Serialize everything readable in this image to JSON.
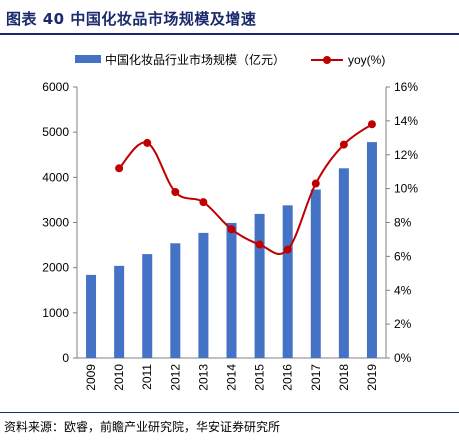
{
  "header": {
    "title": "图表 40  中国化妆品市场规模及增速"
  },
  "footer": {
    "source": "资料来源：欧睿，前瞻产业研究院，华安证券研究所"
  },
  "colors": {
    "bar": "#4472c4",
    "line": "#c00000",
    "title": "#1a2a6c"
  },
  "chart_data": {
    "type": "bar",
    "title": "",
    "categories": [
      "2009",
      "2010",
      "2011",
      "2012",
      "2013",
      "2014",
      "2015",
      "2016",
      "2017",
      "2018",
      "2019"
    ],
    "series": [
      {
        "name": "中国化妆品行业市场规模（亿元）",
        "type": "bar",
        "axis": "left",
        "values": [
          1840,
          2040,
          2300,
          2540,
          2770,
          2990,
          3190,
          3380,
          3730,
          4200,
          4780
        ]
      },
      {
        "name": "yoy(%)",
        "type": "line",
        "axis": "right",
        "values": [
          null,
          11.2,
          12.7,
          9.8,
          9.2,
          7.6,
          6.7,
          6.4,
          10.3,
          12.6,
          13.8
        ]
      }
    ],
    "y_left": {
      "min": 0,
      "max": 6000,
      "ticks": [
        "0",
        "1000",
        "2000",
        "3000",
        "4000",
        "5000",
        "6000"
      ]
    },
    "y_right": {
      "min": 0,
      "max": 16,
      "ticks": [
        "0%",
        "2%",
        "4%",
        "6%",
        "8%",
        "10%",
        "12%",
        "14%",
        "16%"
      ]
    },
    "grid": false,
    "legend": "top"
  }
}
